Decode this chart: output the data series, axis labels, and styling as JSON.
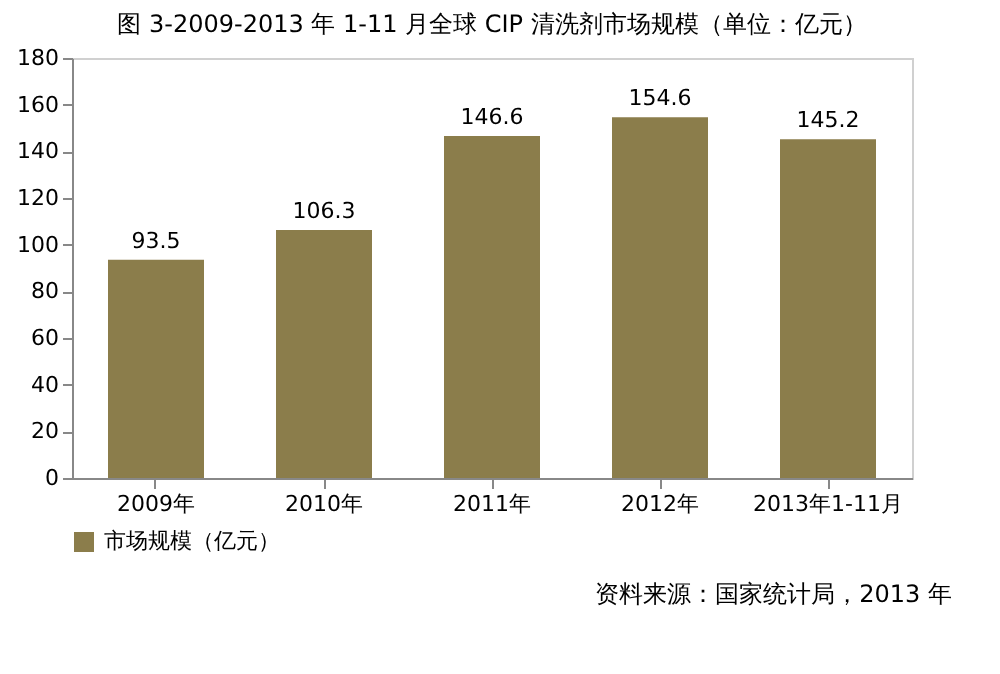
{
  "chart_data": {
    "type": "bar",
    "title": "图 3-2009-2013 年 1-11 月全球 CIP 清洗剂市场规模（单位：亿元）",
    "categories": [
      "2009年",
      "2010年",
      "2011年",
      "2012年",
      "2013年1-11月"
    ],
    "series": [
      {
        "name": "市场规模（亿元）",
        "color": "#8b7d4b",
        "values": [
          93.5,
          106.3,
          146.6,
          154.6,
          145.2
        ]
      }
    ],
    "ylim": [
      0,
      180
    ],
    "yticks": [
      0,
      20,
      40,
      60,
      80,
      100,
      120,
      140,
      160,
      180
    ],
    "data_labels": true,
    "grid": false,
    "legend": "bottom",
    "annotations": [
      "资料来源：国家统计局，2013 年"
    ]
  }
}
